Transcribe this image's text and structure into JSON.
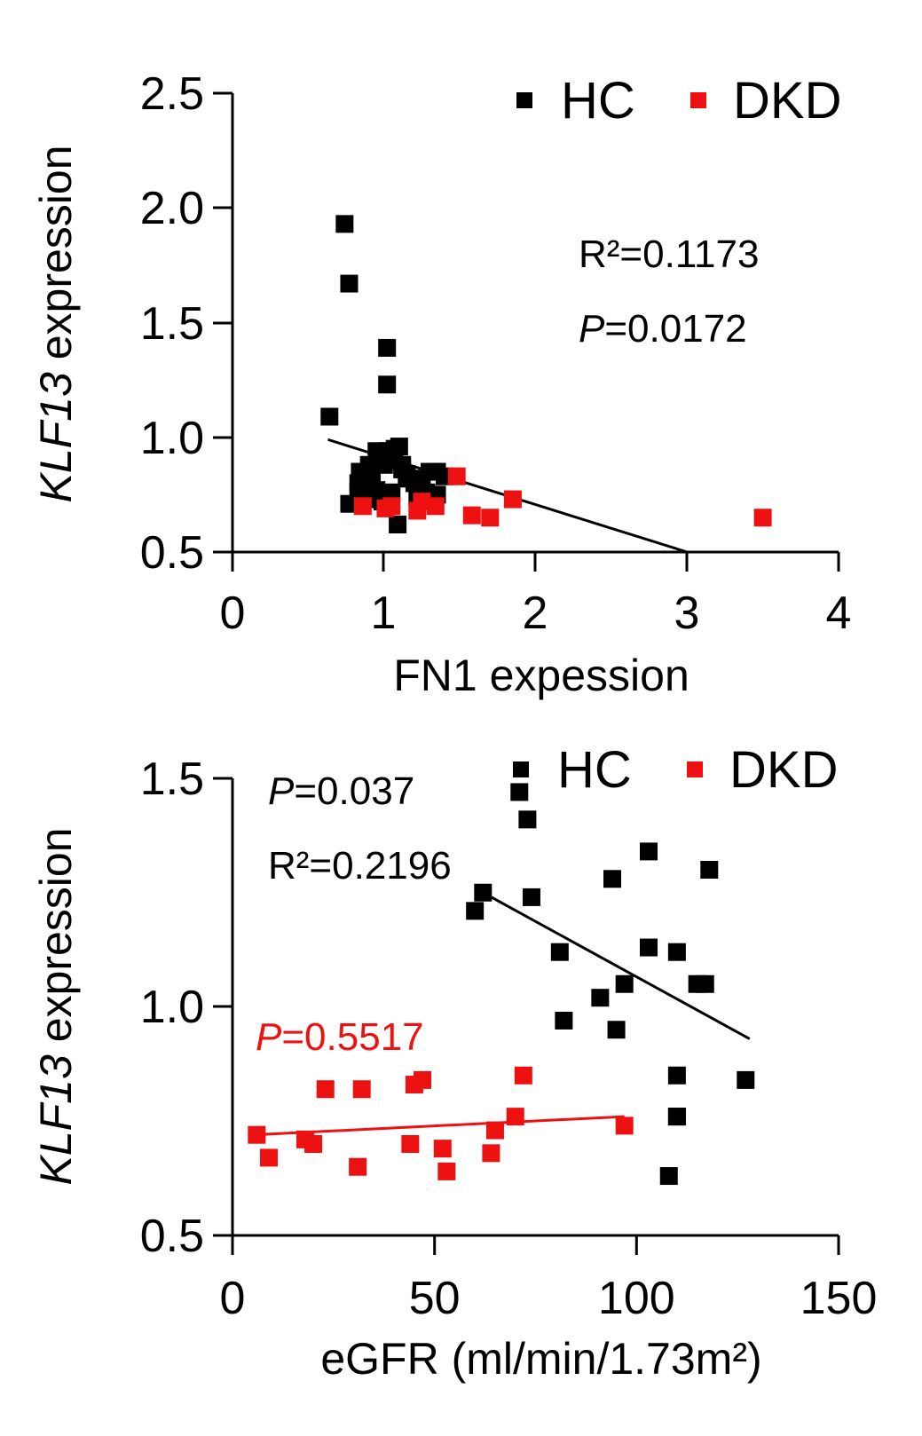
{
  "colors": {
    "hc": "#000000",
    "dkd": "#ee1111",
    "axis": "#000000"
  },
  "chart_data": [
    {
      "type": "scatter",
      "title": "",
      "xlabel": "FN1 expession",
      "ylabel_italic": "KLF13",
      "ylabel_rest": " expression",
      "xlim": [
        0,
        4
      ],
      "ylim": [
        0.5,
        2.5
      ],
      "xticks": [
        "0",
        "1",
        "2",
        "3",
        "4"
      ],
      "yticks": [
        "0.5",
        "1.0",
        "1.5",
        "2.0",
        "2.5"
      ],
      "legend": [
        "HC",
        "DKD"
      ],
      "legend_position": "top-right",
      "annotation_r2": "R²=0.1173",
      "annotation_p_italic": "P",
      "annotation_p_rest": "=0.0172",
      "series": [
        {
          "name": "HC",
          "color": "#000000",
          "x": [
            0.64,
            0.74,
            0.77,
            1.02,
            1.02,
            0.77,
            0.83,
            0.84,
            0.86,
            0.88,
            0.9,
            0.92,
            0.95,
            0.97,
            1.0,
            1.02,
            1.05,
            1.07,
            1.1,
            1.12,
            1.15,
            1.2,
            1.25,
            1.3,
            1.35,
            1.4,
            0.83,
            0.88,
            0.95,
            1.05,
            1.12,
            1.22,
            1.28,
            1.35,
            0.91,
            0.99,
            1.15,
            1.09
          ],
          "y": [
            1.09,
            1.93,
            1.67,
            1.39,
            1.23,
            0.71,
            0.8,
            0.85,
            0.82,
            0.78,
            0.88,
            0.84,
            0.94,
            0.92,
            0.88,
            0.94,
            0.9,
            0.95,
            0.96,
            0.88,
            0.84,
            0.8,
            0.82,
            0.85,
            0.85,
            0.83,
            0.76,
            0.73,
            0.77,
            0.76,
            0.86,
            0.74,
            0.76,
            0.75,
            0.73,
            0.72,
            0.82,
            0.62
          ],
          "fit": {
            "x": [
              0.63,
              3.0
            ],
            "y": [
              0.99,
              0.5
            ]
          }
        },
        {
          "name": "DKD",
          "color": "#ee1111",
          "x": [
            0.86,
            1.01,
            1.05,
            1.22,
            1.25,
            1.34,
            1.48,
            1.58,
            1.7,
            1.85,
            3.5
          ],
          "y": [
            0.7,
            0.69,
            0.7,
            0.68,
            0.72,
            0.7,
            0.83,
            0.66,
            0.65,
            0.73,
            0.65
          ]
        }
      ]
    },
    {
      "type": "scatter",
      "title": "",
      "xlabel": "eGFR (ml/min/1.73m²)",
      "ylabel_italic": "KLF13",
      "ylabel_rest": " expression",
      "xlim": [
        0,
        150
      ],
      "ylim": [
        0.5,
        1.5
      ],
      "xticks": [
        "0",
        "50",
        "100",
        "150"
      ],
      "yticks": [
        "0.5",
        "1.0",
        "1.5"
      ],
      "legend": [
        "HC",
        "DKD"
      ],
      "legend_position": "top-right",
      "annotation_hc_p_italic": "P",
      "annotation_hc_p_rest": "=0.037",
      "annotation_hc_r2": "R²=0.2196",
      "annotation_dkd_p_italic": "P",
      "annotation_dkd_p_rest": "=0.5517",
      "series": [
        {
          "name": "HC",
          "color": "#000000",
          "x": [
            71,
            73,
            62,
            60,
            74,
            81,
            82,
            91,
            94,
            95,
            97,
            103,
            103,
            110,
            110,
            115,
            117,
            118,
            110,
            127,
            110,
            108
          ],
          "y": [
            1.47,
            1.41,
            1.25,
            1.21,
            1.24,
            1.12,
            0.97,
            1.02,
            1.28,
            0.95,
            1.05,
            1.34,
            1.13,
            1.12,
            0.85,
            1.05,
            1.05,
            1.3,
            0.76,
            0.84,
            0.76,
            0.63
          ],
          "fit": {
            "x": [
              62,
              128
            ],
            "y": [
              1.25,
              0.93
            ]
          }
        },
        {
          "name": "DKD",
          "color": "#ee1111",
          "x": [
            6,
            9,
            18,
            20,
            23,
            31,
            32,
            44,
            45,
            47,
            52,
            53,
            64,
            65,
            70,
            72,
            97
          ],
          "y": [
            0.72,
            0.67,
            0.71,
            0.7,
            0.82,
            0.65,
            0.82,
            0.7,
            0.83,
            0.84,
            0.69,
            0.64,
            0.68,
            0.73,
            0.76,
            0.85,
            0.74
          ],
          "fit": {
            "x": [
              5,
              97
            ],
            "y": [
              0.72,
              0.76
            ]
          }
        }
      ]
    }
  ]
}
